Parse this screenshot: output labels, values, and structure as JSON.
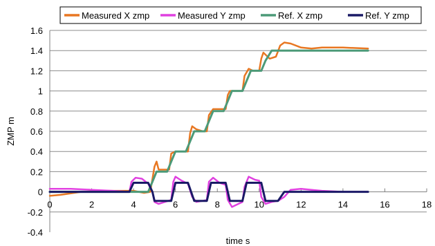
{
  "chart_data": {
    "type": "line",
    "title": "",
    "xlabel": "time s",
    "ylabel": "ZMP m",
    "xlim": [
      0,
      18
    ],
    "ylim": [
      -0.4,
      1.6
    ],
    "x_ticks": [
      0,
      2,
      4,
      6,
      8,
      10,
      12,
      14,
      16,
      18
    ],
    "y_ticks": [
      -0.4,
      -0.2,
      0,
      0.2,
      0.4,
      0.6,
      0.8,
      1,
      1.2,
      1.4,
      1.6
    ],
    "x_tick_labels": [
      "0",
      "2",
      "4",
      "6",
      "8",
      "10",
      "12",
      "14",
      "16",
      "18"
    ],
    "y_tick_labels": [
      "-0.4",
      "-0.2",
      "0",
      "0.2",
      "0.4",
      "0.6",
      "0.8",
      "1",
      "1.2",
      "1.4",
      "1.6"
    ],
    "grid": "horizontal",
    "legend_position": "top",
    "series": [
      {
        "name": "Measured X zmp",
        "color": "#E87722",
        "points": [
          [
            0,
            -0.04
          ],
          [
            0.5,
            -0.03
          ],
          [
            1.5,
            0.0
          ],
          [
            2.5,
            0.01
          ],
          [
            3.5,
            0.01
          ],
          [
            4.0,
            0.01
          ],
          [
            4.5,
            -0.01
          ],
          [
            4.8,
            0.0
          ],
          [
            5.0,
            0.25
          ],
          [
            5.1,
            0.3
          ],
          [
            5.2,
            0.22
          ],
          [
            5.5,
            0.22
          ],
          [
            5.7,
            0.22
          ],
          [
            5.8,
            0.38
          ],
          [
            6.0,
            0.4
          ],
          [
            6.3,
            0.4
          ],
          [
            6.6,
            0.4
          ],
          [
            6.7,
            0.58
          ],
          [
            6.8,
            0.65
          ],
          [
            7.0,
            0.62
          ],
          [
            7.3,
            0.6
          ],
          [
            7.5,
            0.6
          ],
          [
            7.6,
            0.76
          ],
          [
            7.8,
            0.82
          ],
          [
            8.1,
            0.82
          ],
          [
            8.4,
            0.82
          ],
          [
            8.5,
            0.96
          ],
          [
            8.6,
            1.0
          ],
          [
            8.9,
            1.0
          ],
          [
            9.2,
            1.0
          ],
          [
            9.3,
            1.15
          ],
          [
            9.5,
            1.22
          ],
          [
            9.7,
            1.2
          ],
          [
            10.0,
            1.2
          ],
          [
            10.1,
            1.32
          ],
          [
            10.2,
            1.38
          ],
          [
            10.5,
            1.32
          ],
          [
            10.8,
            1.34
          ],
          [
            11.0,
            1.45
          ],
          [
            11.2,
            1.48
          ],
          [
            11.5,
            1.47
          ],
          [
            12.0,
            1.43
          ],
          [
            12.5,
            1.42
          ],
          [
            13.0,
            1.43
          ],
          [
            14.0,
            1.43
          ],
          [
            15.2,
            1.42
          ]
        ]
      },
      {
        "name": "Measured Y zmp",
        "color": "#E040E0",
        "points": [
          [
            0,
            0.03
          ],
          [
            1.0,
            0.03
          ],
          [
            2.0,
            0.02
          ],
          [
            3.0,
            0.01
          ],
          [
            3.8,
            0.0
          ],
          [
            3.9,
            0.1
          ],
          [
            4.1,
            0.14
          ],
          [
            4.4,
            0.13
          ],
          [
            4.7,
            0.08
          ],
          [
            4.9,
            0.0
          ],
          [
            5.0,
            -0.1
          ],
          [
            5.2,
            -0.12
          ],
          [
            5.5,
            -0.1
          ],
          [
            5.8,
            -0.08
          ],
          [
            5.9,
            0.1
          ],
          [
            6.0,
            0.15
          ],
          [
            6.3,
            0.11
          ],
          [
            6.6,
            0.08
          ],
          [
            6.8,
            -0.05
          ],
          [
            7.0,
            -0.1
          ],
          [
            7.3,
            -0.09
          ],
          [
            7.5,
            -0.08
          ],
          [
            7.6,
            0.1
          ],
          [
            7.8,
            0.14
          ],
          [
            8.1,
            0.09
          ],
          [
            8.4,
            0.07
          ],
          [
            8.5,
            -0.08
          ],
          [
            8.7,
            -0.15
          ],
          [
            9.0,
            -0.12
          ],
          [
            9.2,
            -0.1
          ],
          [
            9.3,
            0.05
          ],
          [
            9.5,
            0.15
          ],
          [
            9.8,
            0.12
          ],
          [
            10.0,
            0.11
          ],
          [
            10.1,
            -0.05
          ],
          [
            10.3,
            -0.12
          ],
          [
            10.6,
            -0.1
          ],
          [
            10.9,
            -0.09
          ],
          [
            11.2,
            -0.05
          ],
          [
            11.5,
            0.02
          ],
          [
            12.0,
            0.03
          ],
          [
            12.5,
            0.02
          ],
          [
            13.0,
            0.01
          ],
          [
            14.0,
            0.0
          ],
          [
            15.2,
            0.0
          ]
        ]
      },
      {
        "name": "Ref. X zmp",
        "color": "#4C9A78",
        "points": [
          [
            0,
            0.0
          ],
          [
            4.7,
            0.0
          ],
          [
            4.9,
            0.1
          ],
          [
            5.1,
            0.2
          ],
          [
            5.6,
            0.2
          ],
          [
            5.8,
            0.3
          ],
          [
            6.0,
            0.4
          ],
          [
            6.5,
            0.4
          ],
          [
            6.7,
            0.5
          ],
          [
            6.9,
            0.6
          ],
          [
            7.4,
            0.6
          ],
          [
            7.6,
            0.7
          ],
          [
            7.8,
            0.8
          ],
          [
            8.3,
            0.8
          ],
          [
            8.5,
            0.9
          ],
          [
            8.7,
            1.0
          ],
          [
            9.2,
            1.0
          ],
          [
            9.4,
            1.1
          ],
          [
            9.6,
            1.2
          ],
          [
            10.1,
            1.2
          ],
          [
            10.3,
            1.3
          ],
          [
            10.6,
            1.4
          ],
          [
            11.0,
            1.4
          ],
          [
            15.2,
            1.4
          ]
        ]
      },
      {
        "name": "Ref. Y zmp",
        "color": "#1A1A66",
        "points": [
          [
            0,
            0.0
          ],
          [
            3.8,
            0.0
          ],
          [
            4.0,
            0.09
          ],
          [
            4.7,
            0.09
          ],
          [
            4.9,
            0.0
          ],
          [
            5.0,
            -0.09
          ],
          [
            5.8,
            -0.09
          ],
          [
            6.0,
            0.09
          ],
          [
            6.6,
            0.09
          ],
          [
            6.9,
            -0.09
          ],
          [
            7.5,
            -0.09
          ],
          [
            7.7,
            0.09
          ],
          [
            8.4,
            0.09
          ],
          [
            8.6,
            -0.09
          ],
          [
            9.2,
            -0.09
          ],
          [
            9.4,
            0.09
          ],
          [
            10.1,
            0.09
          ],
          [
            10.3,
            -0.09
          ],
          [
            10.9,
            -0.09
          ],
          [
            11.2,
            0.0
          ],
          [
            15.2,
            0.0
          ]
        ]
      }
    ]
  }
}
